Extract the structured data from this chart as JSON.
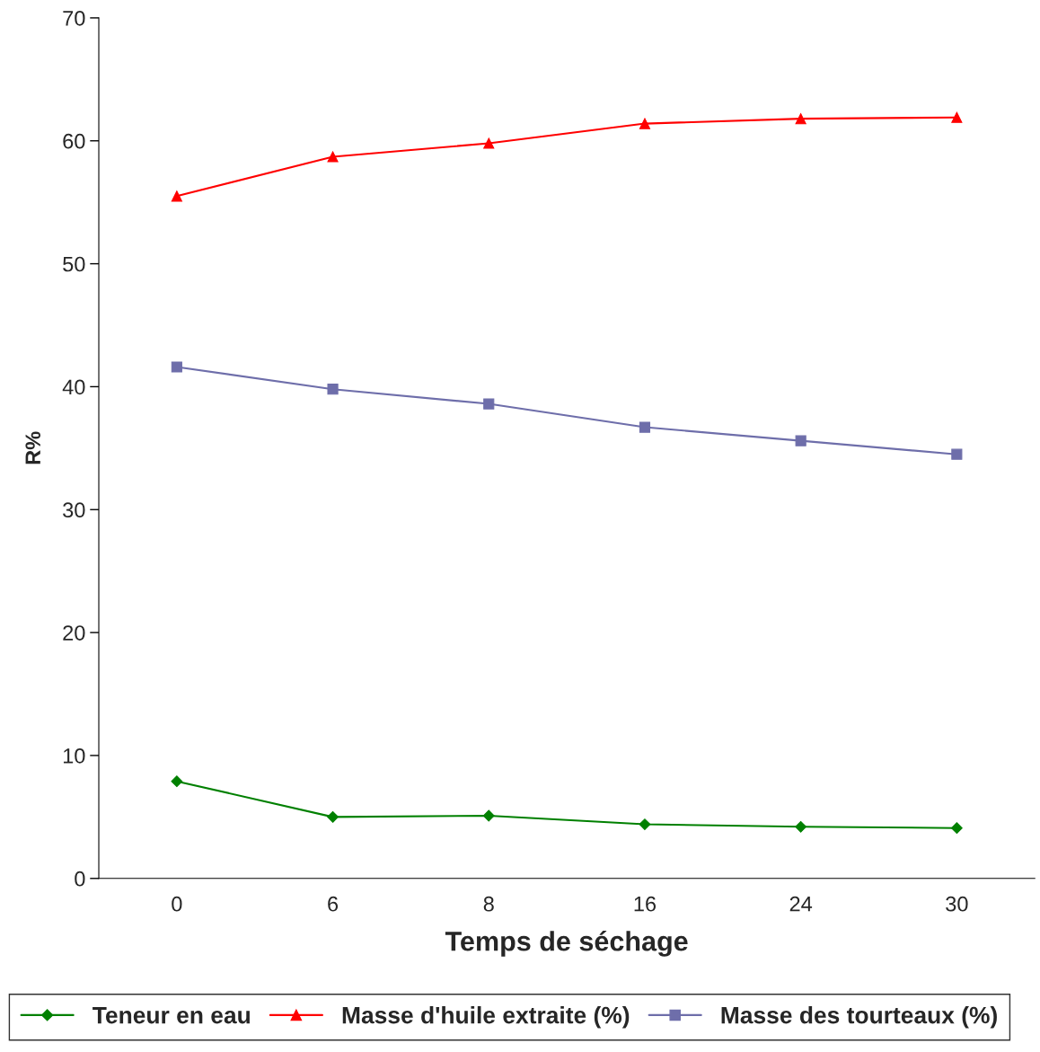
{
  "chart_data": {
    "type": "line",
    "xlabel": "Temps de séchage",
    "ylabel": "R%",
    "categories": [
      "0",
      "6",
      "8",
      "16",
      "24",
      "30"
    ],
    "series": [
      {
        "name": "Teneur en eau",
        "color": "#008000",
        "marker": "diamond",
        "values": [
          7.9,
          5.0,
          5.1,
          4.4,
          4.2,
          4.1
        ]
      },
      {
        "name": "Masse d'huile extraite (%)",
        "color": "#ff0000",
        "marker": "triangle",
        "values": [
          55.5,
          58.7,
          59.8,
          61.4,
          61.8,
          61.9
        ]
      },
      {
        "name": "Masse des tourteaux (%)",
        "color": "#6e6eaa",
        "marker": "square",
        "values": [
          41.6,
          39.8,
          38.6,
          36.7,
          35.6,
          34.5
        ]
      }
    ],
    "ylim": [
      0,
      70
    ],
    "yticks": [
      0,
      10,
      20,
      30,
      40,
      50,
      60,
      70
    ],
    "grid": false,
    "legend": "bottom",
    "line_style": "solid"
  }
}
